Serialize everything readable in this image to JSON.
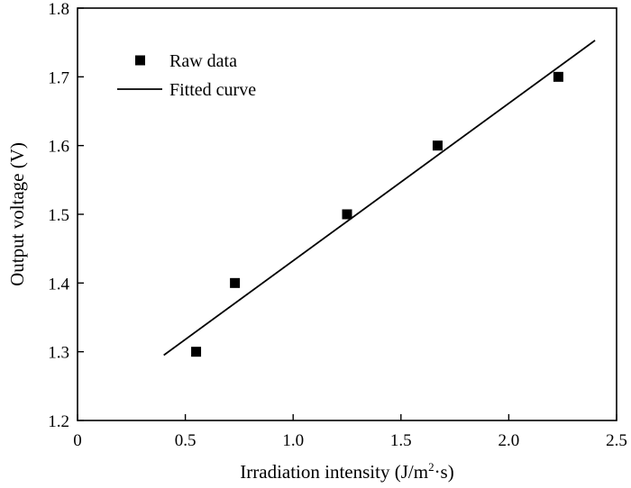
{
  "chart_data": {
    "type": "scatter",
    "xlabel_main": "Irradiation intensity (J/m",
    "xlabel_sup": "2",
    "xlabel_tail": "·s)",
    "ylabel": "Output voltage (V)",
    "xlim": [
      0,
      2.5
    ],
    "ylim": [
      1.2,
      1.8
    ],
    "xticks": [
      0,
      0.5,
      1.0,
      1.5,
      2.0,
      2.5
    ],
    "xtick_labels": [
      "0",
      "0.5",
      "1.0",
      "1.5",
      "2.0",
      "2.5"
    ],
    "yticks": [
      1.2,
      1.3,
      1.4,
      1.5,
      1.6,
      1.7,
      1.8
    ],
    "ytick_labels": [
      "1.2",
      "1.3",
      "1.4",
      "1.5",
      "1.6",
      "1.7",
      "1.8"
    ],
    "grid": false,
    "legend_position": "top-left",
    "series": [
      {
        "name": "Raw data",
        "kind": "markers",
        "marker": "square",
        "color": "#000000",
        "x": [
          0.55,
          0.73,
          1.25,
          1.67,
          2.23
        ],
        "y": [
          1.3,
          1.4,
          1.5,
          1.6,
          1.7
        ]
      },
      {
        "name": "Fitted curve",
        "kind": "line",
        "color": "#000000",
        "x": [
          0.4,
          2.4
        ],
        "y": [
          1.295,
          1.753
        ]
      }
    ]
  }
}
